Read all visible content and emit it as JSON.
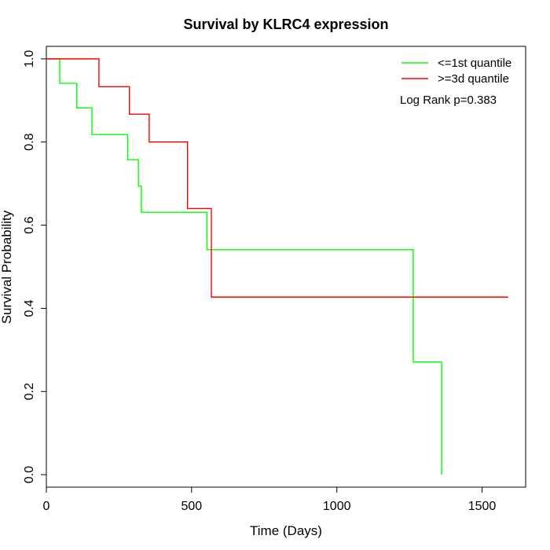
{
  "chart_data": {
    "type": "line",
    "title": "Survival by KLRC4 expression",
    "xlabel": "Time (Days)",
    "ylabel": "Survival Probability",
    "xlim": [
      0,
      1650
    ],
    "ylim": [
      -0.03,
      1.03
    ],
    "x_ticks": [
      0,
      500,
      1000,
      1500
    ],
    "x_tick_labels": [
      "0",
      "500",
      "1000",
      "1500"
    ],
    "y_ticks": [
      0.0,
      0.2,
      0.4,
      0.6,
      0.8,
      1.0
    ],
    "y_tick_labels": [
      "0.0",
      "0.2",
      "0.4",
      "0.6",
      "0.8",
      "1.0"
    ],
    "grid": false,
    "legend_position": "top-right",
    "annotation": "Log Rank p=0.383",
    "series": [
      {
        "name": "<=1st quantile",
        "color": "#00ff00",
        "step": true,
        "x": [
          0,
          46,
          105,
          157,
          280,
          317,
          327,
          553,
          1263,
          1361
        ],
        "y": [
          1.0,
          0.941,
          0.882,
          0.818,
          0.757,
          0.694,
          0.631,
          0.541,
          0.271,
          0.0
        ]
      },
      {
        "name": ">=3d quantile",
        "color": "#ff0000",
        "step": true,
        "x": [
          0,
          181,
          286,
          354,
          486,
          568,
          1590
        ],
        "y": [
          1.0,
          0.933,
          0.867,
          0.8,
          0.64,
          0.427,
          0.427
        ]
      }
    ]
  }
}
